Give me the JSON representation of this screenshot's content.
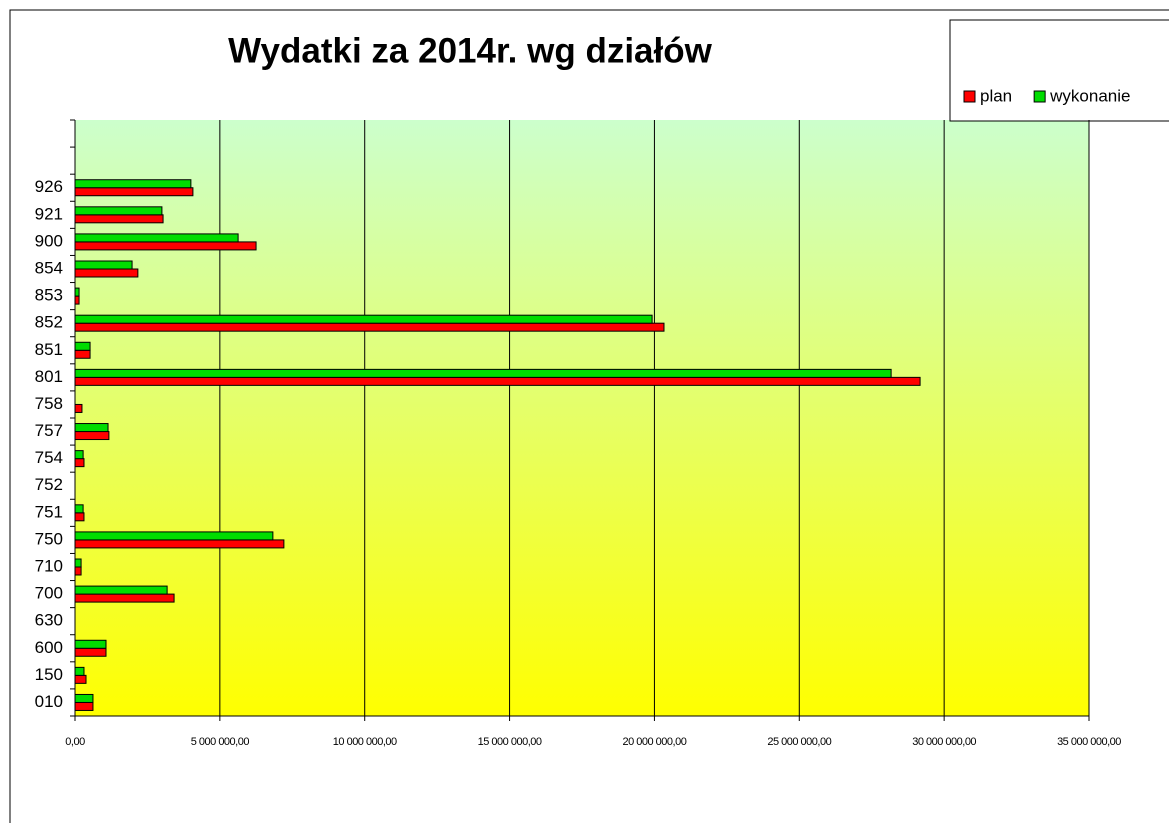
{
  "chart_data": {
    "type": "hbar",
    "title": "Wydatki za 2014r. wg działów",
    "categories": [
      "010",
      "150",
      "600",
      "630",
      "700",
      "710",
      "750",
      "751",
      "752",
      "754",
      "757",
      "758",
      "801",
      "851",
      "852",
      "853",
      "854",
      "900",
      "921",
      "926",
      null,
      null
    ],
    "series": [
      {
        "name": "plan",
        "color": "#ff0000",
        "values": [
          620000,
          380000,
          1070000,
          0,
          3420000,
          210000,
          7210000,
          310000,
          0,
          310000,
          1170000,
          240000,
          29170000,
          520000,
          20330000,
          140000,
          2170000,
          6250000,
          3040000,
          4070000,
          null,
          null
        ]
      },
      {
        "name": "wykonanie",
        "color": "#00dd00",
        "values": [
          620000,
          310000,
          1070000,
          0,
          3180000,
          210000,
          6830000,
          280000,
          0,
          280000,
          1140000,
          0,
          28170000,
          520000,
          19920000,
          140000,
          1970000,
          5630000,
          3000000,
          4000000,
          null,
          null
        ]
      }
    ],
    "xlim": [
      0,
      35000000
    ],
    "xticks": [
      {
        "value": 0,
        "label": "0,00"
      },
      {
        "value": 5000000,
        "label": "5 000 000,00"
      },
      {
        "value": 10000000,
        "label": "10 000 000,00"
      },
      {
        "value": 15000000,
        "label": "15 000 000,00"
      },
      {
        "value": 20000000,
        "label": "20 000 000,00"
      },
      {
        "value": 25000000,
        "label": "25 000 000,00"
      },
      {
        "value": 30000000,
        "label": "30 000 000,00"
      },
      {
        "value": 35000000,
        "label": "35 000 000,00"
      }
    ],
    "grid": true,
    "legend": "top-right"
  }
}
